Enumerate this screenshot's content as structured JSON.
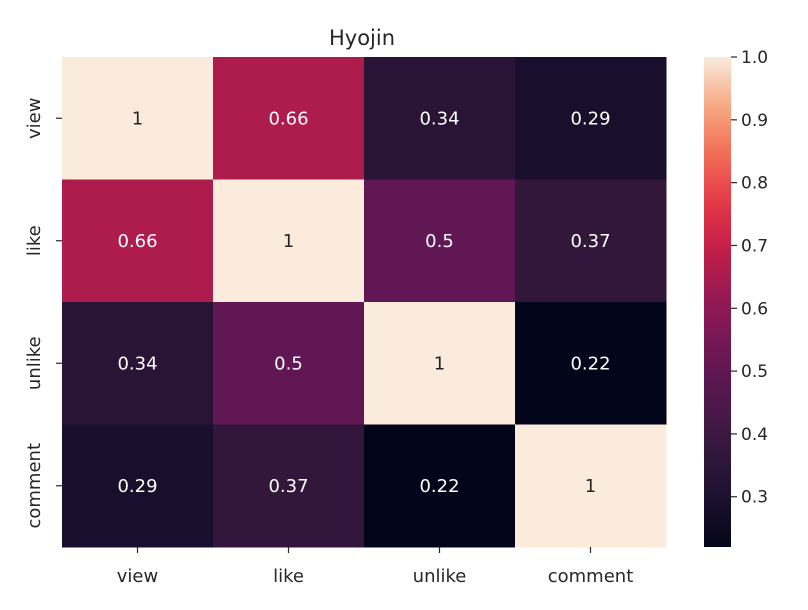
{
  "chart_data": {
    "type": "heatmap",
    "title": "Hyojin",
    "x_categories": [
      "view",
      "like",
      "unlike",
      "comment"
    ],
    "y_categories": [
      "view",
      "like",
      "unlike",
      "comment"
    ],
    "values": [
      [
        1,
        0.66,
        0.34,
        0.29
      ],
      [
        0.66,
        1,
        0.5,
        0.37
      ],
      [
        0.34,
        0.5,
        1,
        0.22
      ],
      [
        0.29,
        0.37,
        0.22,
        1
      ]
    ],
    "annotations": [
      [
        "1",
        "0.66",
        "0.34",
        "0.29"
      ],
      [
        "0.66",
        "1",
        "0.5",
        "0.37"
      ],
      [
        "0.34",
        "0.5",
        "1",
        "0.22"
      ],
      [
        "0.29",
        "0.37",
        "0.22",
        "1"
      ]
    ],
    "colorbar": {
      "colormap": "rocket",
      "range": [
        0.22,
        1.0
      ],
      "ticks": [
        0.3,
        0.4,
        0.5,
        0.6,
        0.7,
        0.8,
        0.9,
        1.0
      ],
      "tick_labels": [
        "0.3",
        "0.4",
        "0.5",
        "0.6",
        "0.7",
        "0.8",
        "0.9",
        "1.0"
      ]
    }
  }
}
